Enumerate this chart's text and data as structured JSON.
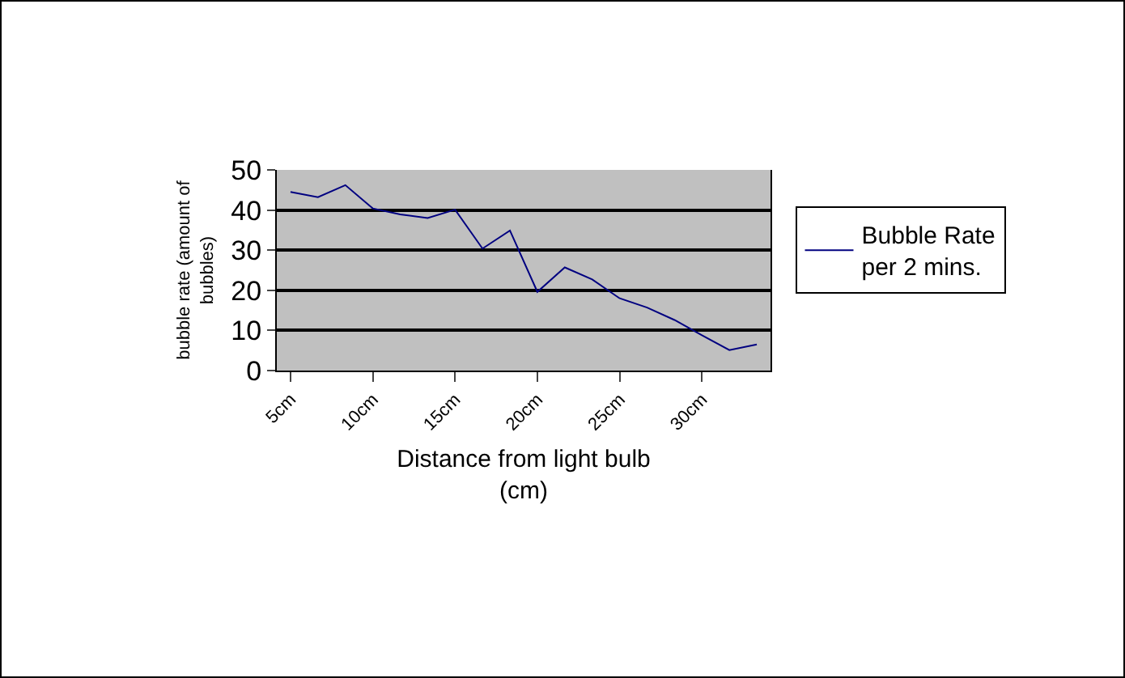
{
  "chart_data": {
    "type": "line",
    "xlabel": "Distance from light bulb (cm)",
    "ylabel": "bubble rate (amount of bubbles)",
    "categories": [
      "5cm",
      null,
      null,
      "10cm",
      null,
      null,
      "15cm",
      null,
      null,
      "20cm",
      null,
      null,
      "25cm",
      null,
      null,
      "30cm",
      null,
      null
    ],
    "series": [
      {
        "name": "Bubble Rate per 2 mins.",
        "color": "#000080",
        "values": [
          44.5,
          43.2,
          46.2,
          40.4,
          38.9,
          38,
          40.1,
          30.4,
          34.9,
          19.6,
          25.7,
          22.7,
          18,
          15.7,
          12.6,
          8.8,
          5.1,
          6.5
        ]
      }
    ],
    "ylim": [
      0,
      50
    ],
    "yticks": [
      0,
      10,
      20,
      30,
      40,
      50
    ],
    "grid": "y",
    "legend": "right",
    "marker": "none",
    "line_style": "solid"
  }
}
